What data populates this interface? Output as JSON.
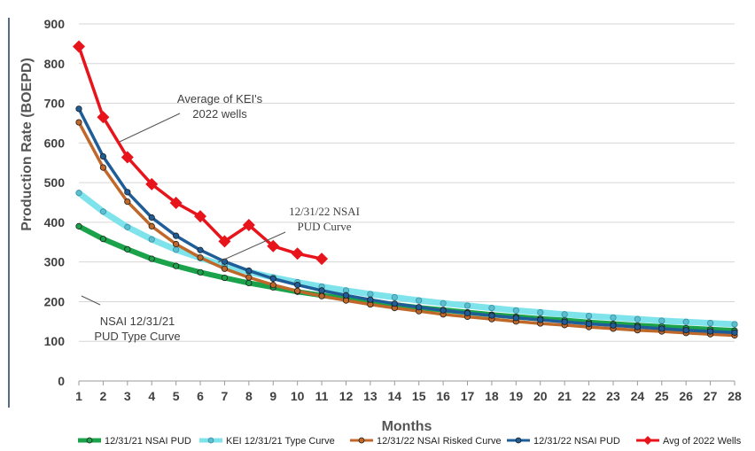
{
  "chart_data": {
    "type": "line",
    "xlabel": "Months",
    "ylabel": "Production Rate (BOEPD)",
    "xlim": [
      1,
      28
    ],
    "ylim": [
      0,
      900
    ],
    "x_ticks": [
      "1",
      "2",
      "3",
      "4",
      "5",
      "6",
      "7",
      "8",
      "9",
      "10",
      "11",
      "12",
      "13",
      "14",
      "15",
      "16",
      "17",
      "18",
      "19",
      "20",
      "21",
      "22",
      "23",
      "24",
      "25",
      "26",
      "27",
      "28"
    ],
    "y_ticks": [
      "0",
      "100",
      "200",
      "300",
      "400",
      "500",
      "600",
      "700",
      "800",
      "900"
    ],
    "grid": "horizontal",
    "legend_position": "bottom",
    "annotations": [
      {
        "lines": [
          "Average of KEI's",
          "2022 wells"
        ],
        "target_series": "Avg of 2022 Wells"
      },
      {
        "lines": [
          "12/31/22 NSAI",
          "PUD Curve"
        ],
        "target_series": "12/31/22 NSAI PUD"
      },
      {
        "lines": [
          "NSAI 12/31/21",
          "PUD Type Curve"
        ],
        "target_series": "12/31/21 NSAI PUD"
      }
    ],
    "series": [
      {
        "name": "12/31/21 NSAI PUD",
        "color": "#1aa34a",
        "marker": "circle",
        "x": [
          1,
          2,
          3,
          4,
          5,
          6,
          7,
          8,
          9,
          10,
          11,
          12,
          13,
          14,
          15,
          16,
          17,
          18,
          19,
          20,
          21,
          22,
          23,
          24,
          25,
          26,
          27,
          28
        ],
        "values": [
          390,
          358,
          332,
          308,
          290,
          274,
          260,
          247,
          236,
          225,
          216,
          207,
          199,
          192,
          185,
          179,
          173,
          167,
          162,
          157,
          153,
          148,
          144,
          140,
          137,
          133,
          130,
          127
        ]
      },
      {
        "name": "KEI 12/31/21 Type Curve",
        "color": "#7fe3ec",
        "marker": "circle",
        "x": [
          1,
          2,
          3,
          4,
          5,
          6,
          7,
          8,
          9,
          10,
          11,
          12,
          13,
          14,
          15,
          16,
          17,
          18,
          19,
          20,
          21,
          22,
          23,
          24,
          25,
          26,
          27,
          28
        ],
        "values": [
          474,
          427,
          388,
          357,
          331,
          310,
          291,
          275,
          261,
          249,
          238,
          228,
          219,
          211,
          203,
          196,
          190,
          184,
          178,
          173,
          168,
          164,
          160,
          156,
          152,
          149,
          146,
          143
        ]
      },
      {
        "name": "12/31/22 NSAI Risked Curve",
        "color": "#c0682a",
        "marker": "circle",
        "x": [
          1,
          2,
          3,
          4,
          5,
          6,
          7,
          8,
          9,
          10,
          11,
          12,
          13,
          14,
          15,
          16,
          17,
          18,
          19,
          20,
          21,
          22,
          23,
          24,
          25,
          26,
          27,
          28
        ],
        "values": [
          652,
          538,
          452,
          390,
          345,
          311,
          283,
          261,
          242,
          227,
          214,
          203,
          193,
          184,
          176,
          168,
          162,
          156,
          150,
          145,
          141,
          136,
          132,
          128,
          125,
          121,
          118,
          115
        ]
      },
      {
        "name": "12/31/22 NSAI PUD",
        "color": "#1f5d99",
        "marker": "circle",
        "x": [
          1,
          2,
          3,
          4,
          5,
          6,
          7,
          8,
          9,
          10,
          11,
          12,
          13,
          14,
          15,
          16,
          17,
          18,
          19,
          20,
          21,
          22,
          23,
          24,
          25,
          26,
          27,
          28
        ],
        "values": [
          686,
          566,
          476,
          412,
          366,
          330,
          301,
          278,
          258,
          242,
          228,
          216,
          205,
          195,
          186,
          178,
          171,
          165,
          159,
          154,
          149,
          144,
          140,
          136,
          132,
          128,
          125,
          122
        ]
      },
      {
        "name": "Avg of 2022 Wells",
        "color": "#e8141c",
        "marker": "diamond",
        "x": [
          1,
          2,
          3,
          4,
          5,
          6,
          7,
          8,
          9,
          10,
          11
        ],
        "values": [
          843,
          665,
          564,
          496,
          449,
          415,
          352,
          393,
          340,
          321,
          308
        ]
      }
    ]
  }
}
